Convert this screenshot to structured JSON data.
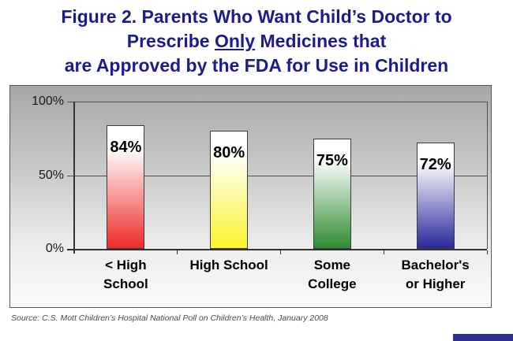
{
  "title": {
    "line1": "Figure 2. Parents Who Want Child’s Doctor to",
    "line2_prefix": "Prescribe ",
    "line2_underlined": "Only",
    "line2_suffix": " Medicines that",
    "line3": "are Approved by the FDA for Use in Children",
    "color": "#1c1c8e"
  },
  "chart_data": {
    "type": "bar",
    "title": "Figure 2. Parents Who Want Child's Doctor to Prescribe Only Medicines that are Approved by the FDA for Use in Children",
    "categories": [
      "< High School",
      "High School",
      "Some College",
      "Bachelor's or Higher"
    ],
    "category_lines": [
      [
        "< High",
        "School"
      ],
      [
        "High School",
        ""
      ],
      [
        "Some",
        "College"
      ],
      [
        "Bachelor's",
        "or Higher"
      ]
    ],
    "values": [
      84,
      80,
      75,
      72
    ],
    "value_labels": [
      "84%",
      "80%",
      "75%",
      "72%"
    ],
    "bar_colors": [
      "#ee2a2a",
      "#fbf32b",
      "#2f8b32",
      "#28289b"
    ],
    "bar_gradient_top": "#ffffff",
    "xlabel": "",
    "ylabel": "",
    "ylim": [
      0,
      100
    ],
    "yticks": [
      "100%",
      "50%",
      "0%"
    ],
    "gridlines": [
      50,
      100
    ],
    "legend": "none",
    "plot_background": "gray gradient, dark top to white bottom"
  },
  "source_note": "Source: C.S. Mott Children’s Hospital National Poll on Children’s Health, January 2008"
}
